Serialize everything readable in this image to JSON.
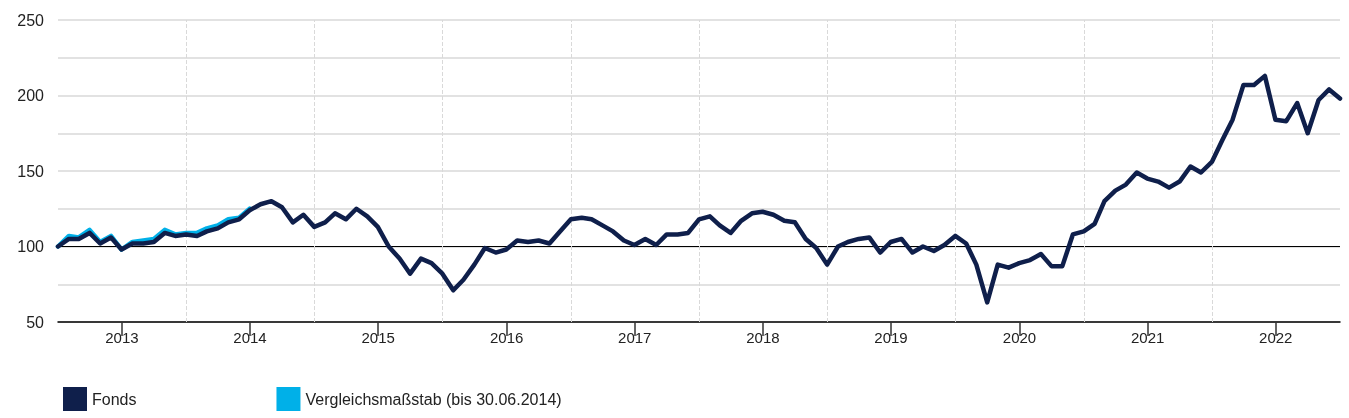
{
  "chart_data": {
    "type": "line",
    "x": [
      "2012-12-31",
      "2013-01-31",
      "2013-02-28",
      "2013-03-31",
      "2013-04-30",
      "2013-05-31",
      "2013-06-30",
      "2013-07-31",
      "2013-08-31",
      "2013-09-30",
      "2013-10-31",
      "2013-11-30",
      "2013-12-31",
      "2014-01-31",
      "2014-02-28",
      "2014-03-31",
      "2014-04-30",
      "2014-05-31",
      "2014-06-30",
      "2014-07-31",
      "2014-08-31",
      "2014-09-30",
      "2014-10-31",
      "2014-11-30",
      "2014-12-31",
      "2015-01-31",
      "2015-02-28",
      "2015-03-31",
      "2015-04-30",
      "2015-05-31",
      "2015-06-30",
      "2015-07-31",
      "2015-08-31",
      "2015-09-30",
      "2015-10-31",
      "2015-11-30",
      "2015-12-31",
      "2016-01-31",
      "2016-02-29",
      "2016-03-31",
      "2016-04-30",
      "2016-05-31",
      "2016-06-30",
      "2016-07-31",
      "2016-08-31",
      "2016-09-30",
      "2016-10-31",
      "2016-11-30",
      "2016-12-31",
      "2017-01-31",
      "2017-02-28",
      "2017-03-31",
      "2017-04-30",
      "2017-05-31",
      "2017-06-30",
      "2017-07-31",
      "2017-08-31",
      "2017-09-30",
      "2017-10-31",
      "2017-11-30",
      "2017-12-31",
      "2018-01-31",
      "2018-02-28",
      "2018-03-31",
      "2018-04-30",
      "2018-05-31",
      "2018-06-30",
      "2018-07-31",
      "2018-08-31",
      "2018-09-30",
      "2018-10-31",
      "2018-11-30",
      "2018-12-31",
      "2019-01-31",
      "2019-02-28",
      "2019-03-31",
      "2019-04-30",
      "2019-05-31",
      "2019-06-30",
      "2019-07-31",
      "2019-08-31",
      "2019-09-30",
      "2019-10-31",
      "2019-11-30",
      "2019-12-31",
      "2020-01-31",
      "2020-02-29",
      "2020-03-31",
      "2020-04-30",
      "2020-05-31",
      "2020-06-30",
      "2020-07-31",
      "2020-08-31",
      "2020-09-30",
      "2020-10-31",
      "2020-11-30",
      "2020-12-31",
      "2021-01-31",
      "2021-02-28",
      "2021-03-31",
      "2021-04-30",
      "2021-05-31",
      "2021-06-30",
      "2021-07-31",
      "2021-08-31",
      "2021-09-30",
      "2021-10-31",
      "2021-11-30",
      "2021-12-31",
      "2022-01-31",
      "2022-02-28",
      "2022-03-31",
      "2022-04-30",
      "2022-05-31",
      "2022-06-30",
      "2022-07-31",
      "2022-08-31",
      "2022-09-30",
      "2022-10-31",
      "2022-11-30",
      "2022-12-31"
    ],
    "series": [
      {
        "name": "Fonds",
        "color": "#0f1f4b",
        "values": [
          100,
          105,
          105,
          109,
          102,
          106,
          98,
          102,
          102,
          103,
          109,
          107,
          108,
          107,
          110,
          112,
          116,
          118,
          124,
          128,
          130,
          126,
          116,
          121,
          113,
          116,
          122,
          118,
          125,
          120,
          113,
          100,
          92,
          82,
          92,
          89,
          82,
          71,
          78,
          88,
          99,
          96,
          98,
          104,
          103,
          104,
          102,
          110,
          118,
          119,
          118,
          114,
          110,
          104,
          101,
          105,
          101,
          108,
          108,
          109,
          118,
          120,
          114,
          109,
          117,
          122,
          123,
          121,
          117,
          116,
          105,
          99,
          88,
          100,
          103,
          105,
          106,
          96,
          103,
          105,
          96,
          100,
          97,
          101,
          107,
          102,
          88,
          63,
          88,
          86,
          89,
          91,
          95,
          87,
          87,
          108,
          110,
          115,
          130,
          137,
          141,
          149,
          145,
          143,
          139,
          143,
          153,
          149,
          156,
          171,
          184,
          207,
          207,
          213,
          184,
          183,
          195,
          175,
          197,
          204,
          198
        ]
      },
      {
        "name": "Vergleichsmaßstab (bis 30.06.2014)",
        "color": "#00b0e8",
        "values": [
          100,
          107,
          106,
          111,
          103,
          107,
          98,
          103,
          104,
          105,
          111,
          108,
          109,
          109,
          112,
          114,
          118,
          119,
          125,
          null,
          null,
          null,
          null,
          null,
          null,
          null,
          null,
          null,
          null,
          null,
          null,
          null,
          null,
          null,
          null,
          null,
          null,
          null,
          null,
          null,
          null,
          null,
          null,
          null,
          null,
          null,
          null,
          null,
          null,
          null,
          null,
          null,
          null,
          null,
          null,
          null,
          null,
          null,
          null,
          null,
          null,
          null,
          null,
          null,
          null,
          null,
          null,
          null,
          null,
          null,
          null,
          null,
          null,
          null,
          null,
          null,
          null,
          null,
          null,
          null,
          null,
          null,
          null,
          null,
          null,
          null,
          null,
          null,
          null,
          null,
          null,
          null,
          null,
          null,
          null,
          null,
          null,
          null,
          null,
          null,
          null,
          null,
          null,
          null,
          null,
          null,
          null,
          null,
          null,
          null,
          null,
          null,
          null,
          null,
          null,
          null,
          null,
          null,
          null,
          null,
          null
        ]
      }
    ],
    "xlim": [
      "2012-12-31",
      "2022-12-31"
    ],
    "xticks": [
      {
        "value": "2013-07-01",
        "label": "2013"
      },
      {
        "value": "2014-07-01",
        "label": "2014"
      },
      {
        "value": "2015-07-01",
        "label": "2015"
      },
      {
        "value": "2016-07-01",
        "label": "2016"
      },
      {
        "value": "2017-07-01",
        "label": "2017"
      },
      {
        "value": "2018-07-01",
        "label": "2018"
      },
      {
        "value": "2019-07-01",
        "label": "2019"
      },
      {
        "value": "2020-07-01",
        "label": "2020"
      },
      {
        "value": "2021-07-01",
        "label": "2021"
      },
      {
        "value": "2022-07-01",
        "label": "2022"
      }
    ],
    "ylim": [
      50,
      250
    ],
    "yticks": [
      50,
      {
        "value": 75,
        "label": null
      },
      100,
      {
        "value": 125,
        "label": null
      },
      150,
      {
        "value": 175,
        "label": null
      },
      200,
      {
        "value": 225,
        "label": null
      },
      250
    ],
    "ref_lines": [
      {
        "axis": "y",
        "value": 100,
        "color": "#000000",
        "line_style": "solid"
      },
      {
        "axis": "x",
        "value": "2014-01-01",
        "color": "#d9d9d9",
        "line_style": "dashed"
      },
      {
        "axis": "x",
        "value": "2015-01-01",
        "color": "#d9d9d9",
        "line_style": "dashed"
      },
      {
        "axis": "x",
        "value": "2016-01-01",
        "color": "#d9d9d9",
        "line_style": "dashed"
      },
      {
        "axis": "x",
        "value": "2017-01-01",
        "color": "#d9d9d9",
        "line_style": "dashed"
      },
      {
        "axis": "x",
        "value": "2018-01-01",
        "color": "#d9d9d9",
        "line_style": "dashed"
      },
      {
        "axis": "x",
        "value": "2019-01-01",
        "color": "#d9d9d9",
        "line_style": "dashed"
      },
      {
        "axis": "x",
        "value": "2020-01-01",
        "color": "#d9d9d9",
        "line_style": "dashed"
      },
      {
        "axis": "x",
        "value": "2021-01-01",
        "color": "#d9d9d9",
        "line_style": "dashed"
      },
      {
        "axis": "x",
        "value": "2022-01-01",
        "color": "#d9d9d9",
        "line_style": "dashed"
      }
    ],
    "grid": "y",
    "legend": "bottom left",
    "marker": "none",
    "line_style": "solid"
  }
}
